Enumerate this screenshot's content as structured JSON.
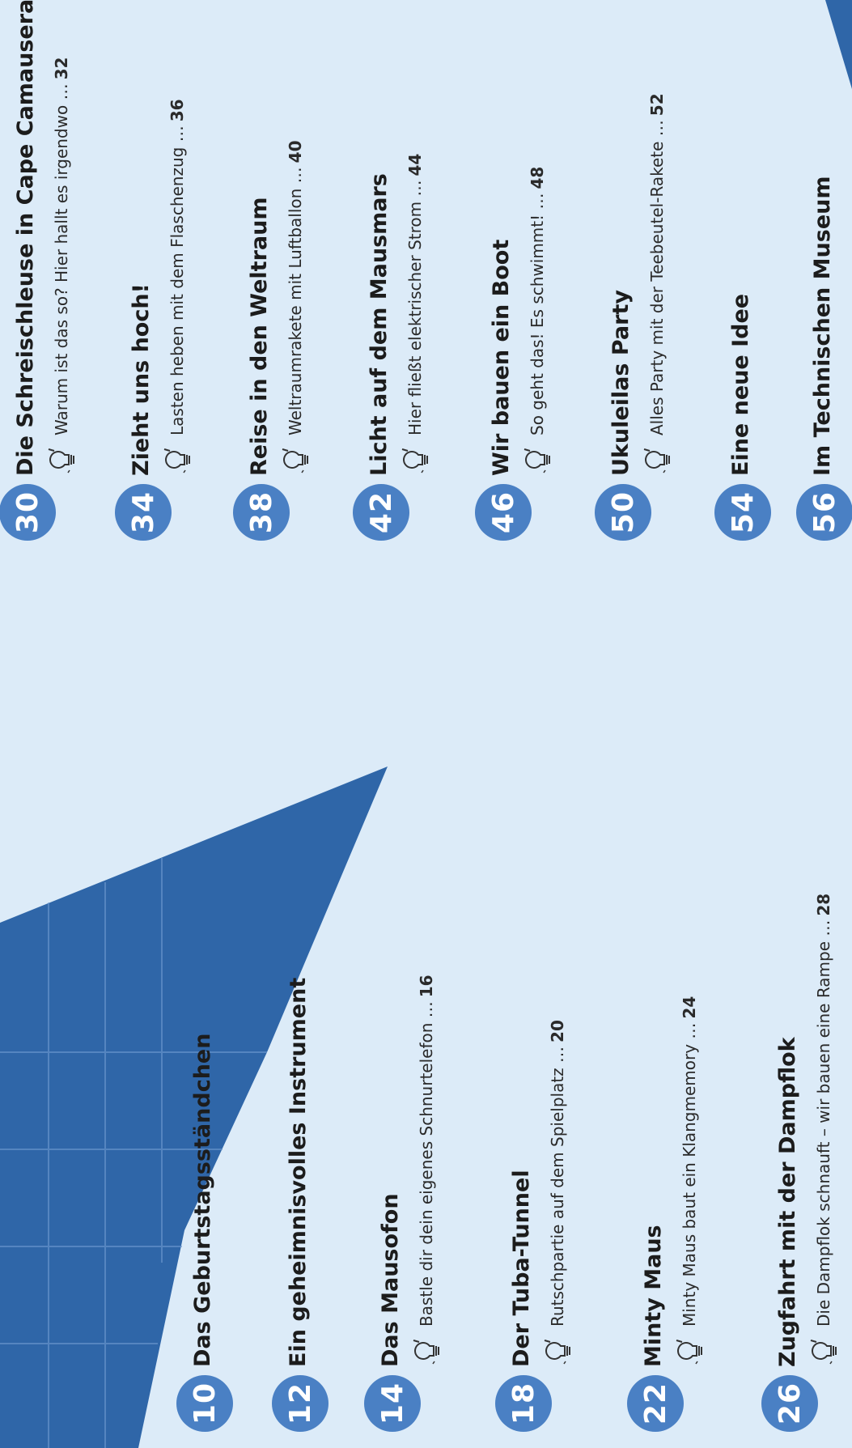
{
  "entries": [
    {
      "number": "10",
      "title": "Das Geburtstagsständchen"
    },
    {
      "number": "12",
      "title": "Ein geheimnisvolles Instrument"
    },
    {
      "number": "14",
      "title": "Das Mausofon",
      "tip": "Bastle dir dein eigenes Schnurtelefon …",
      "tip_page": "16"
    },
    {
      "number": "18",
      "title": "Der Tuba-Tunnel",
      "tip": "Rutschpartie auf dem Spielplatz …",
      "tip_page": "20"
    },
    {
      "number": "22",
      "title": "Minty Maus",
      "tip": "Minty Maus baut ein Klangmemory …",
      "tip_page": "24"
    },
    {
      "number": "26",
      "title": "Zugfahrt mit der Dampflok",
      "tip": "Die Dampflok schnauft – wir bauen eine Rampe …",
      "tip_page": "28"
    },
    {
      "number": "30",
      "title": "Die Schreischleuse in Cape Camauseral",
      "tip": "Warum ist das so? Hier hallt es irgendwo …",
      "tip_page": "32"
    },
    {
      "number": "34",
      "title": "Zieht uns hoch!",
      "tip": "Lasten heben mit dem Flaschenzug …",
      "tip_page": "36"
    },
    {
      "number": "38",
      "title": "Reise in den Weltraum",
      "tip": "Weltraumrakete mit Luftballon …",
      "tip_page": "40"
    },
    {
      "number": "42",
      "title": "Licht auf dem Mausmars",
      "tip": "Hier fließt elektrischer Strom …",
      "tip_page": "44"
    },
    {
      "number": "46",
      "title": "Wir bauen ein Boot",
      "tip": "So geht das! Es schwimmt! …",
      "tip_page": "48"
    },
    {
      "number": "50",
      "title": "Ukuleilas Party",
      "tip": "Alles Party mit der Teebeutel-Rakete …",
      "tip_page": "52"
    },
    {
      "number": "54",
      "title": "Eine neue Idee"
    },
    {
      "number": "56",
      "title": "Im Technischen Museum"
    }
  ]
}
